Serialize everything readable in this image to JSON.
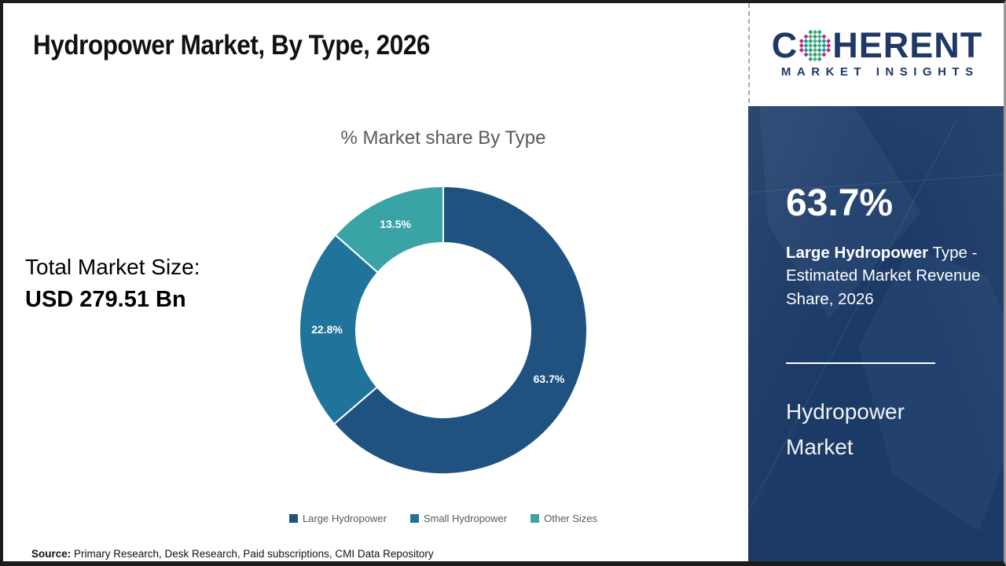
{
  "page": {
    "title": "Hydropower Market, By Type, 2026",
    "source_label": "Source:",
    "source_text": " Primary Research, Desk Research, Paid subscriptions, CMI Data Repository"
  },
  "logo": {
    "word_start": "C",
    "word_end": "HERENT",
    "subtitle": "MARKET INSIGHTS",
    "icon": "dotted-globe-icon",
    "brand_color": "#1f3864",
    "dot_colors": {
      "outer": "#c0267c",
      "teal": "#17a2a2",
      "green": "#55b24b"
    }
  },
  "left_panel": {
    "total_label": "Total Market Size:",
    "total_value": "USD 279.51 Bn"
  },
  "chart_data": {
    "type": "pie",
    "donut": true,
    "title": "% Market share By Type",
    "categories": [
      "Large Hydropower",
      "Small Hydropower",
      "Other Sizes"
    ],
    "values": [
      63.7,
      22.8,
      13.5
    ],
    "labels": [
      "63.7%",
      "22.8%",
      "13.5%"
    ],
    "colors": [
      "#1f5280",
      "#20749c",
      "#3aa3a5"
    ],
    "start_angle_deg": 0,
    "direction": "clockwise",
    "legend_position": "bottom"
  },
  "sidebar": {
    "stat_value": "63.7%",
    "stat_desc_bold": "Large Hydropower",
    "stat_desc_rest": " Type - Estimated Market Revenue Share, 2026",
    "footer_title": "Hydropower Market",
    "bg_color": "#1c3a66"
  }
}
